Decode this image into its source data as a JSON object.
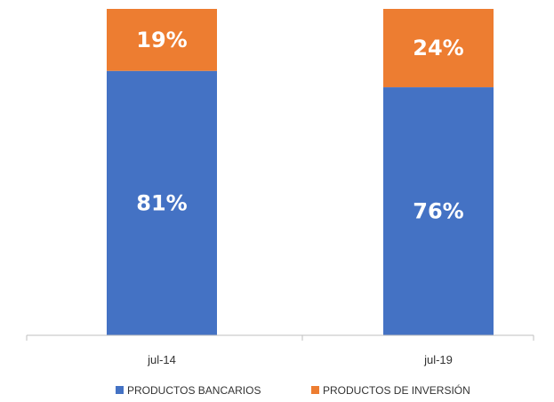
{
  "chart_data": {
    "type": "bar",
    "stacked": true,
    "percent_stacked": true,
    "categories": [
      "jul-14",
      "jul-19"
    ],
    "series": [
      {
        "name": "PRODUCTOS BANCARIOS",
        "values": [
          81,
          76
        ],
        "labels": [
          "81%",
          "76%"
        ],
        "color": "#4472c4"
      },
      {
        "name": "PRODUCTOS DE INVERSIÓN",
        "values": [
          19,
          24
        ],
        "labels": [
          "19%",
          "24%"
        ],
        "color": "#ed7d31"
      }
    ],
    "ylim": [
      0,
      100
    ],
    "grid": false,
    "legend_position": "bottom"
  }
}
